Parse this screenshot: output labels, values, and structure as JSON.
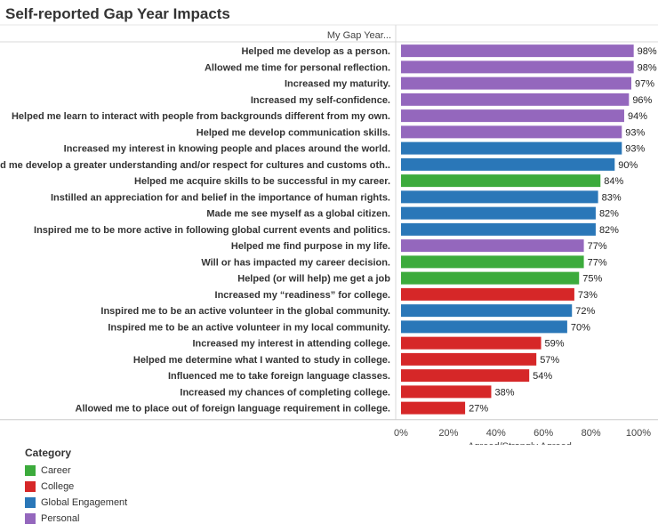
{
  "title": "Self-reported Gap Year Impacts",
  "chart_data": {
    "type": "bar",
    "orientation": "horizontal",
    "column_header": "My Gap Year...",
    "xlabel": "Agreed/Strongly Agreed",
    "xlim": [
      0,
      100
    ],
    "x_ticks": [
      "0%",
      "20%",
      "40%",
      "60%",
      "80%",
      "100%"
    ],
    "categories": [
      "Helped me develop as a person.",
      "Allowed me time for personal reflection.",
      "Increased my maturity.",
      "Increased my self-confidence.",
      "Helped me learn to interact with people from backgrounds different from my own.",
      "Helped me develop communication skills.",
      "Increased my interest in knowing people and places around the world.",
      "Helped me develop a greater understanding and/or respect for cultures and customs oth..",
      "Helped me acquire skills to be successful in my career.",
      "Instilled an appreciation for and belief in the importance of human rights.",
      "Made me see myself as a global citizen.",
      "Inspired me to be more active in following global current events and politics.",
      "Helped me find purpose in my life.",
      "Will or has impacted my career decision.",
      "Helped (or will help) me get a job",
      "Increased my “readiness” for college.",
      "Inspired me to be an active volunteer in the global community.",
      "Inspired me to be an active volunteer in my local community.",
      "Increased my interest in attending college.",
      "Helped me determine what I wanted to study in college.",
      "Influenced me to take foreign language classes.",
      "Increased my chances of completing college.",
      "Allowed me to place out of foreign language requirement in college."
    ],
    "values": [
      98,
      98,
      97,
      96,
      94,
      93,
      93,
      90,
      84,
      83,
      82,
      82,
      77,
      77,
      75,
      73,
      72,
      70,
      59,
      57,
      54,
      38,
      27
    ],
    "value_labels": [
      "98%",
      "98%",
      "97%",
      "96%",
      "94%",
      "93%",
      "93%",
      "90%",
      "84%",
      "83%",
      "82%",
      "82%",
      "77%",
      "77%",
      "75%",
      "73%",
      "72%",
      "70%",
      "59%",
      "57%",
      "54%",
      "38%",
      "27%"
    ],
    "groups": [
      "Personal",
      "Personal",
      "Personal",
      "Personal",
      "Personal",
      "Personal",
      "Global Engagement",
      "Global Engagement",
      "Career",
      "Global Engagement",
      "Global Engagement",
      "Global Engagement",
      "Personal",
      "Career",
      "Career",
      "College",
      "Global Engagement",
      "Global Engagement",
      "College",
      "College",
      "College",
      "College",
      "College"
    ],
    "legend": {
      "title": "Category",
      "position": "bottom-left",
      "items": [
        {
          "name": "Career",
          "color": "#3cab3c"
        },
        {
          "name": "College",
          "color": "#d62728"
        },
        {
          "name": "Global Engagement",
          "color": "#2a77b8"
        },
        {
          "name": "Personal",
          "color": "#9467bd"
        }
      ]
    },
    "grid": false
  }
}
